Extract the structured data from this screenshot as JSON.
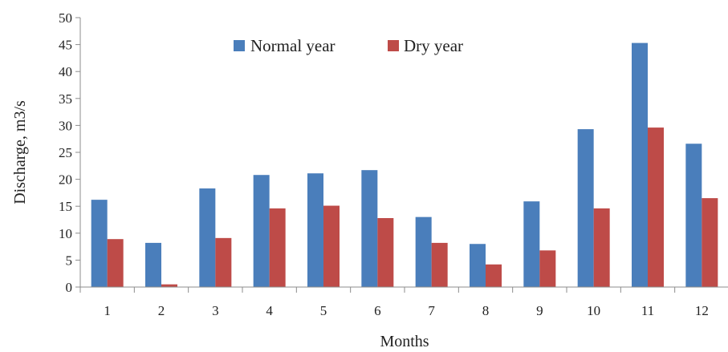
{
  "chart_data": {
    "type": "bar",
    "categories": [
      "1",
      "2",
      "3",
      "4",
      "5",
      "6",
      "7",
      "8",
      "9",
      "10",
      "11",
      "12"
    ],
    "series": [
      {
        "name": "Normal year",
        "color": "#4a7ebb",
        "values": [
          16.2,
          8.2,
          18.3,
          20.8,
          21.1,
          21.7,
          13.0,
          8.0,
          15.9,
          29.3,
          45.3,
          26.6
        ]
      },
      {
        "name": "Dry year",
        "color": "#be4b48",
        "values": [
          8.9,
          0.5,
          9.1,
          14.6,
          15.1,
          12.8,
          8.2,
          4.2,
          6.8,
          14.6,
          29.6,
          16.5
        ]
      }
    ],
    "xlabel": "Months",
    "ylabel": "Discharge, m3/s",
    "ylim": [
      0,
      50
    ],
    "yticks": [
      "0",
      "5",
      "10",
      "15",
      "20",
      "25",
      "30",
      "35",
      "40",
      "45",
      "50"
    ],
    "grid": false,
    "legend_position": "top-center"
  }
}
